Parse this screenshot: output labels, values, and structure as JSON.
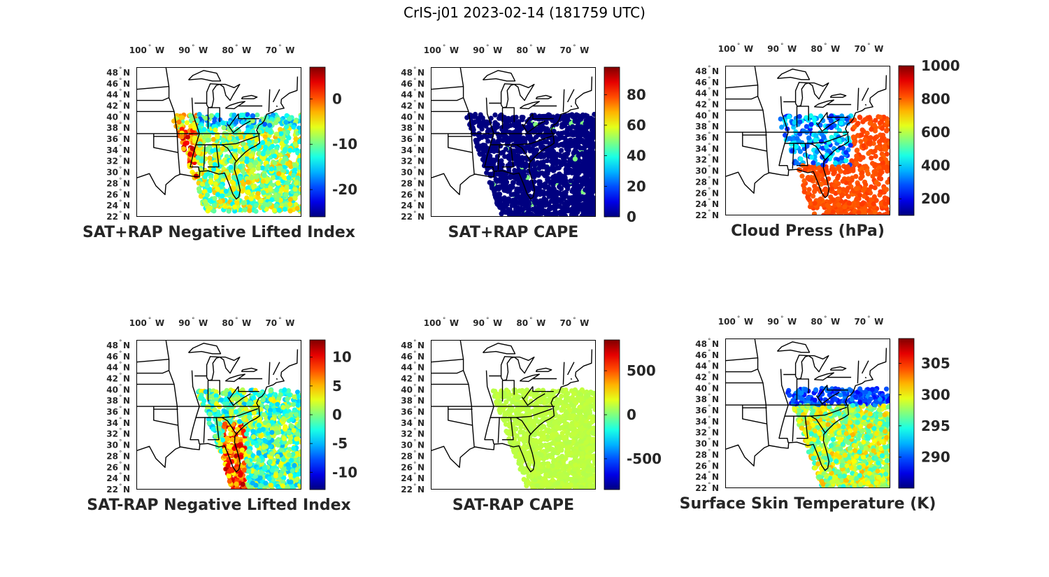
{
  "title": "CrIS-j01 2023-02-14 (181759 UTC)",
  "lon_ticks": [
    {
      "label": "100",
      "unit": "W"
    },
    {
      "label": "90",
      "unit": "W"
    },
    {
      "label": "80",
      "unit": "W"
    },
    {
      "label": "70",
      "unit": "W"
    }
  ],
  "lat_ticks": [
    {
      "label": "48",
      "unit": "N"
    },
    {
      "label": "46",
      "unit": "N"
    },
    {
      "label": "44",
      "unit": "N"
    },
    {
      "label": "42",
      "unit": "N"
    },
    {
      "label": "40",
      "unit": "N"
    },
    {
      "label": "38",
      "unit": "N"
    },
    {
      "label": "36",
      "unit": "N"
    },
    {
      "label": "34",
      "unit": "N"
    },
    {
      "label": "32",
      "unit": "N"
    },
    {
      "label": "30",
      "unit": "N"
    },
    {
      "label": "28",
      "unit": "N"
    },
    {
      "label": "26",
      "unit": "N"
    },
    {
      "label": "24",
      "unit": "N"
    },
    {
      "label": "22",
      "unit": "N"
    }
  ],
  "panels": [
    {
      "caption": "SAT+RAP Negative Lifted Index",
      "colorbar_ticks": [
        "0",
        "-10",
        "-20"
      ],
      "colorbar_range": [
        -26,
        7
      ]
    },
    {
      "caption": "SAT+RAP CAPE",
      "colorbar_ticks": [
        "80",
        "60",
        "40",
        "20",
        "0"
      ],
      "colorbar_range": [
        0,
        98
      ]
    },
    {
      "caption": "Cloud Press (hPa)",
      "colorbar_ticks": [
        "1000",
        "800",
        "600",
        "400",
        "200"
      ],
      "colorbar_range": [
        100,
        1000
      ]
    },
    {
      "caption": "SAT-RAP Negative Lifted Index",
      "colorbar_ticks": [
        "10",
        "5",
        "0",
        "-5",
        "-10"
      ],
      "colorbar_range": [
        -13,
        13
      ]
    },
    {
      "caption": "SAT-RAP CAPE",
      "colorbar_ticks": [
        "500",
        "0",
        "-500"
      ],
      "colorbar_range": [
        -850,
        850
      ]
    },
    {
      "caption": "Surface Skin Temperature (K)",
      "colorbar_ticks": [
        "305",
        "300",
        "295",
        "290"
      ],
      "colorbar_range": [
        285,
        309
      ]
    }
  ],
  "colors": {
    "colormap": "jet",
    "coastline": "#000000"
  }
}
